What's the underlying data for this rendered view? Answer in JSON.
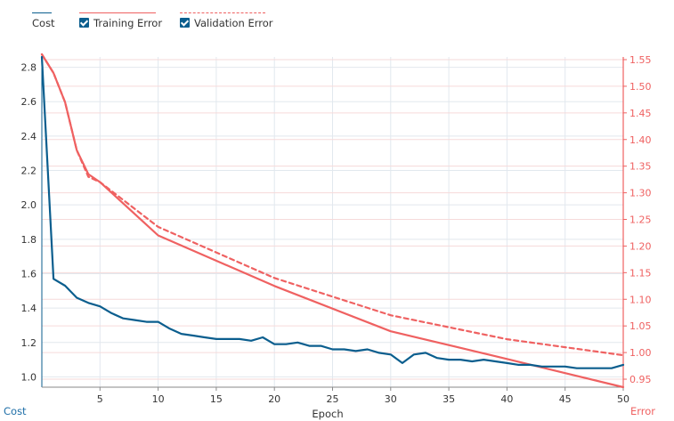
{
  "colors": {
    "cost": "#0b5e8e",
    "error": "#ef6161",
    "grid": "#e2e8ee",
    "axis_text": "#333333"
  },
  "legend": {
    "cost_label": "Cost",
    "training_label": "Training Error",
    "validation_label": "Validation Error"
  },
  "chart_data": {
    "type": "line",
    "xlabel": "Epoch",
    "ylabel_left": "Cost",
    "ylabel_right": "Error",
    "xlim": [
      0,
      50
    ],
    "ylim_left": [
      0.94,
      2.86
    ],
    "ylim_right": [
      0.935,
      1.555
    ],
    "x_ticks": [
      5,
      10,
      15,
      20,
      25,
      30,
      35,
      40,
      45,
      50
    ],
    "y_left_ticks": [
      1.0,
      1.2,
      1.4,
      1.6,
      1.8,
      2.0,
      2.2,
      2.4,
      2.6,
      2.8
    ],
    "y_left_tick_labels": [
      "1.0",
      "1.2",
      "1.4",
      "1.6",
      "1.8",
      "2.0",
      "2.2",
      "2.4",
      "2.6",
      "2.8"
    ],
    "y_right_ticks": [
      0.95,
      1.0,
      1.05,
      1.1,
      1.15,
      1.2,
      1.25,
      1.3,
      1.35,
      1.4,
      1.45,
      1.5,
      1.55
    ],
    "y_right_tick_labels": [
      "0.95",
      "1.00",
      "1.05",
      "1.10",
      "1.15",
      "1.20",
      "1.25",
      "1.30",
      "1.35",
      "1.40",
      "1.45",
      "1.50",
      "1.55"
    ],
    "series": [
      {
        "name": "Cost",
        "axis": "left",
        "x": [
          0,
          1,
          2,
          3,
          4,
          5,
          6,
          7,
          8,
          9,
          10,
          11,
          12,
          13,
          14,
          15,
          16,
          17,
          18,
          19,
          20,
          21,
          22,
          23,
          24,
          25,
          26,
          27,
          28,
          29,
          30,
          31,
          32,
          33,
          34,
          35,
          36,
          37,
          38,
          39,
          40,
          41,
          42,
          43,
          44,
          45,
          46,
          47,
          48,
          49,
          50
        ],
        "values": [
          2.86,
          1.57,
          1.53,
          1.46,
          1.43,
          1.41,
          1.37,
          1.34,
          1.33,
          1.32,
          1.32,
          1.28,
          1.25,
          1.24,
          1.23,
          1.22,
          1.22,
          1.22,
          1.21,
          1.23,
          1.19,
          1.19,
          1.2,
          1.18,
          1.18,
          1.16,
          1.16,
          1.15,
          1.16,
          1.14,
          1.13,
          1.08,
          1.13,
          1.14,
          1.11,
          1.1,
          1.1,
          1.09,
          1.1,
          1.09,
          1.08,
          1.07,
          1.07,
          1.06,
          1.06,
          1.06,
          1.05,
          1.05,
          1.05,
          1.05,
          1.07
        ]
      },
      {
        "name": "Training Error",
        "axis": "right",
        "x": [
          0,
          1,
          2,
          3,
          4,
          5,
          10,
          20,
          30,
          40,
          50
        ],
        "values": [
          1.56,
          1.525,
          1.47,
          1.38,
          1.335,
          1.32,
          1.22,
          1.125,
          1.04,
          0.988,
          0.935
        ]
      },
      {
        "name": "Validation Error",
        "axis": "right",
        "x": [
          0,
          1,
          2,
          3,
          4,
          5,
          10,
          20,
          30,
          40,
          50
        ],
        "values": [
          1.56,
          1.525,
          1.47,
          1.38,
          1.33,
          1.32,
          1.236,
          1.14,
          1.07,
          1.025,
          0.995
        ]
      }
    ]
  }
}
